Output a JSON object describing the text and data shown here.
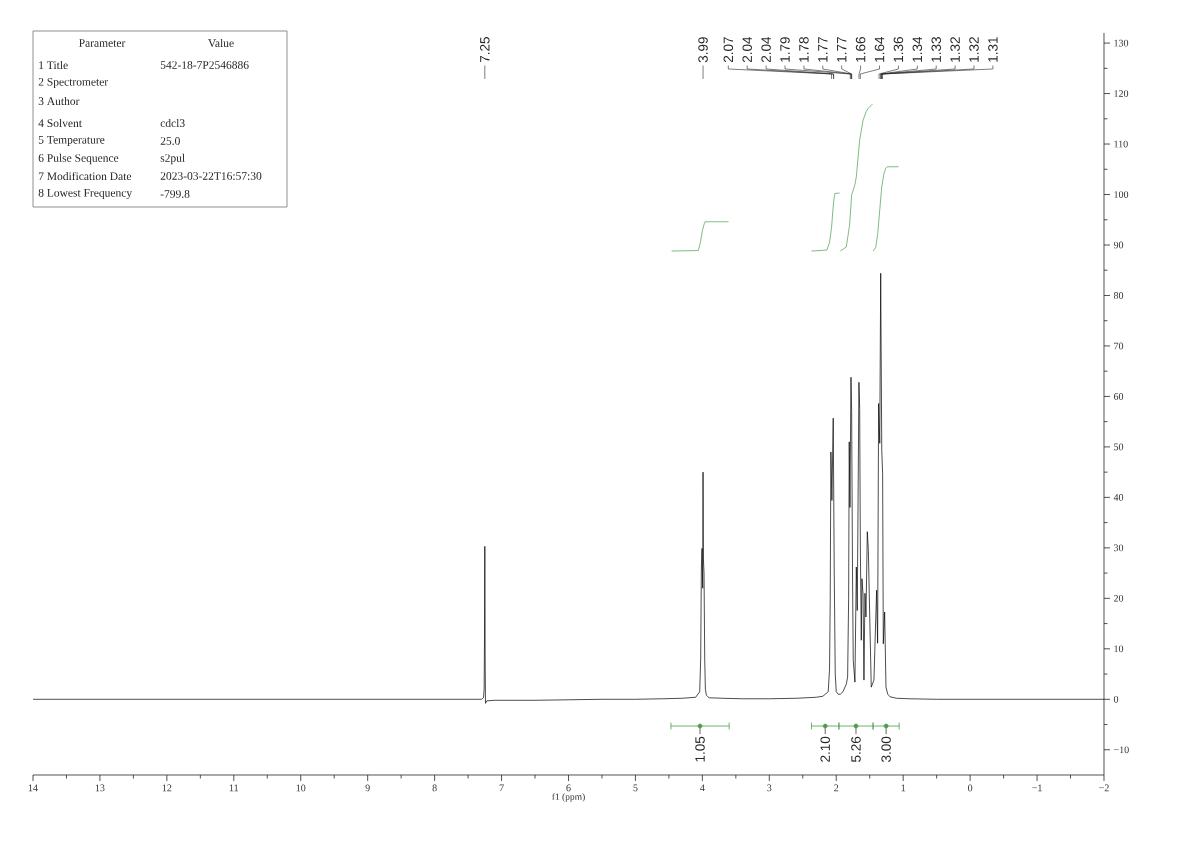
{
  "chart_data": {
    "type": "line",
    "xlabel": "f1 (ppm)",
    "xlim": [
      14,
      -2
    ],
    "ylim": [
      -15,
      132
    ],
    "xticks": [
      14,
      13,
      12,
      11,
      10,
      9,
      8,
      7,
      6,
      5,
      4,
      3,
      2,
      1,
      0,
      {
        "value": -1,
        "label": "−1"
      },
      {
        "value": -2,
        "label": "−2"
      }
    ],
    "yticks": [
      {
        "value": -10,
        "label": "−10"
      },
      0,
      10,
      20,
      30,
      40,
      50,
      60,
      70,
      80,
      90,
      100,
      110,
      120,
      130
    ],
    "marker": "none",
    "line_style": "solid",
    "series": [
      {
        "color": "#000000",
        "x": [
          14,
          13,
          12,
          11,
          10,
          9,
          8.5,
          8,
          7.6,
          7.3,
          7.27,
          7.26,
          7.255,
          7.25,
          7.245,
          7.24,
          7.22,
          7.1,
          6.5,
          6,
          5.5,
          5,
          4.6,
          4.3,
          4.1,
          4.04,
          4.025,
          4.015,
          4.005,
          3.995,
          3.99,
          3.985,
          3.975,
          3.965,
          3.955,
          3.94,
          3.9,
          3.7,
          3.4,
          3,
          2.6,
          2.3,
          2.2,
          2.12,
          2.1,
          2.09,
          2.08,
          2.065,
          2.045,
          2.03,
          2.015,
          2,
          1.97,
          1.94,
          1.9,
          1.85,
          1.83,
          1.815,
          1.806,
          1.795,
          1.78,
          1.77,
          1.757,
          1.746,
          1.721,
          1.7,
          1.686,
          1.661,
          1.65,
          1.64,
          1.626,
          1.616,
          1.6,
          1.586,
          1.571,
          1.556,
          1.536,
          1.52,
          1.507,
          1.477,
          1.437,
          1.397,
          1.382,
          1.367,
          1.35,
          1.336,
          1.32,
          1.307,
          1.297,
          1.277,
          1.257,
          1.23,
          1.197,
          1.1,
          0.9,
          0.5,
          0,
          -0.5,
          -1,
          -1.5,
          -2
        ],
        "values": [
          0,
          0,
          0,
          0,
          0,
          0,
          0,
          0,
          0,
          0,
          0.3,
          2,
          12,
          30.3,
          8,
          -0.8,
          -0.3,
          -0.2,
          -0.2,
          -0.1,
          0,
          0,
          0.1,
          0.2,
          0.4,
          1.5,
          8,
          26,
          29.9,
          22,
          45,
          28,
          25,
          8,
          2,
          0.8,
          0.3,
          0.2,
          0.1,
          0.1,
          0.2,
          0.4,
          0.6,
          1.5,
          6,
          20,
          49,
          39.4,
          55.7,
          25,
          5,
          1.5,
          1,
          1,
          1.5,
          3,
          4.4,
          20,
          51,
          38,
          63.8,
          57,
          25,
          7.7,
          3.4,
          26.2,
          17.6,
          62.8,
          57.6,
          30.2,
          11.7,
          23.9,
          20.9,
          3.8,
          21,
          16.3,
          33.2,
          29.5,
          21,
          2.4,
          3.8,
          21.6,
          11.1,
          58.6,
          50.7,
          84.4,
          49.3,
          44.7,
          11,
          17.3,
          2.4,
          1,
          0.5,
          0.2,
          0.1,
          0,
          0,
          0,
          0,
          0,
          0
        ]
      },
      {
        "color": "#4a9e4a",
        "x": [
          4.46,
          4.06,
          4.03,
          4.0,
          3.97,
          3.96,
          3.61
        ],
        "values": [
          88.8,
          88.9,
          90.5,
          92.8,
          94.3,
          94.6,
          94.6
        ]
      },
      {
        "color": "#4a9e4a",
        "x": [
          2.37,
          2.14,
          2.1,
          2.07,
          2.04,
          2.02,
          1.95
        ],
        "values": [
          88.8,
          89,
          90.5,
          93.5,
          98.5,
          100.2,
          100.3
        ]
      },
      {
        "color": "#4a9e4a",
        "x": [
          1.94,
          1.85,
          1.8,
          1.77,
          1.72,
          1.7,
          1.67,
          1.65,
          1.6,
          1.55,
          1.52,
          1.46
        ],
        "values": [
          88.8,
          89.6,
          94,
          99.9,
          102,
          103.5,
          108,
          110.8,
          114.7,
          116.5,
          117.1,
          117.9
        ]
      },
      {
        "color": "#4a9e4a",
        "x": [
          1.45,
          1.41,
          1.38,
          1.35,
          1.32,
          1.29,
          1.26,
          1.24,
          1.07
        ],
        "values": [
          88.8,
          89.5,
          92.3,
          97,
          101.5,
          104,
          105.2,
          105.5,
          105.5
        ]
      },
      {
        "type": "scatter",
        "color": "#4a9e4a",
        "x": [
          4.035,
          2.165,
          1.705,
          1.255
        ],
        "values": [
          -5.3,
          -5.3,
          -5.3,
          -5.3
        ],
        "xerrors": [
          0.435,
          0.205,
          0.255,
          0.195
        ]
      }
    ],
    "annotations": [
      "Parameter",
      "Value",
      "1 Title",
      "542-18-7P2546886",
      "2 Spectrometer",
      "3 Author",
      "4 Solvent",
      "cdcl3",
      "5 Temperature",
      "25.0",
      "6 Pulse Sequence",
      "s2pul",
      "7 Modification Date",
      "2023-03-22T16:57:30",
      "8 Lowest Frequency",
      "-799.8",
      {
        "text": "7.25",
        "x": 7.25
      },
      {
        "text": "3.99",
        "x": 3.99
      },
      {
        "text": "2.07",
        "x": 2.07
      },
      {
        "text": "2.04",
        "x": 2.04
      },
      {
        "text": "2.04",
        "x": 2.04
      },
      {
        "text": "1.79",
        "x": 1.79
      },
      {
        "text": "1.78",
        "x": 1.78
      },
      {
        "text": "1.77",
        "x": 1.77
      },
      {
        "text": "1.77",
        "x": 1.77
      },
      {
        "text": "1.66",
        "x": 1.66
      },
      {
        "text": "1.64",
        "x": 1.64
      },
      {
        "text": "1.36",
        "x": 1.36
      },
      {
        "text": "1.34",
        "x": 1.34
      },
      {
        "text": "1.33",
        "x": 1.33
      },
      {
        "text": "1.32",
        "x": 1.32
      },
      {
        "text": "1.32",
        "x": 1.32
      },
      {
        "text": "1.31",
        "x": 1.31
      },
      {
        "text": "1.05",
        "x": 4.035,
        "y": -5.3
      },
      {
        "text": "2.10",
        "x": 2.165,
        "y": -5.3
      },
      {
        "text": "5.26",
        "x": 1.705,
        "y": -5.3
      },
      {
        "text": "3.00",
        "x": 1.255,
        "y": -5.3
      }
    ]
  }
}
